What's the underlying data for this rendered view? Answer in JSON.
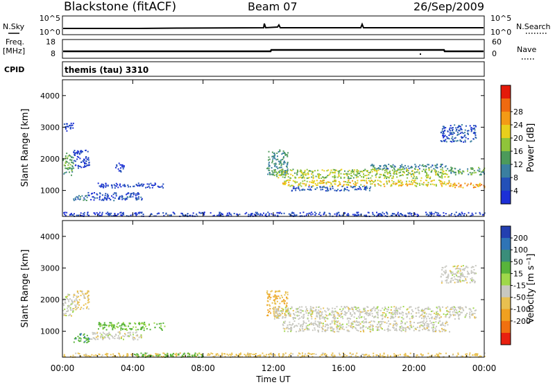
{
  "header": {
    "station": "Blackstone (fitACF)",
    "beam": "Beam 07",
    "date": "26/Sep/2009"
  },
  "strips": {
    "nsky_label": "N.Sky",
    "nsky_ticks": [
      "10^5",
      "10^0"
    ],
    "nsearch_label": "N.Search",
    "nsearch_ticks": [
      "10^5",
      "10^0"
    ],
    "freq_label": "Freq.",
    "freq_unit": "[MHz]",
    "freq_ticks": [
      "18",
      "8"
    ],
    "nave_label": "Nave",
    "nave_ticks": [
      "60",
      "0"
    ],
    "cpid_label": "CPID",
    "cpid_value": "themis (tau) 3310"
  },
  "colors": {
    "power_scale": [
      "#1c2fd6",
      "#2350b8",
      "#3a7fa0",
      "#4c9a5a",
      "#8fc43a",
      "#e8cf1c",
      "#f39a16",
      "#ef6a10",
      "#e41a0a"
    ],
    "velocity_scale": [
      "#233fb0",
      "#2f74b6",
      "#3a8d7a",
      "#58b43a",
      "#9fd84a",
      "#c8c8c0",
      "#e8c050",
      "#f0a020",
      "#f07010",
      "#e82010"
    ]
  },
  "chart_data": [
    {
      "type": "heatmap",
      "panel": "power",
      "ylabel": "Slant Range [km]",
      "ylim": [
        180,
        4500
      ],
      "yticks": [
        "1000",
        "2000",
        "3000",
        "4000"
      ],
      "colorbar_label": "Power [dB]",
      "colorbar_ticks": [
        "4",
        "8",
        "12",
        "16",
        "20",
        "24",
        "28"
      ],
      "x_hours": [
        0,
        24
      ],
      "regions": [
        {
          "t": [
            0.0,
            0.6
          ],
          "r": [
            1500,
            2200
          ],
          "v": 14
        },
        {
          "t": [
            0.0,
            0.6
          ],
          "r": [
            2900,
            3150
          ],
          "v": 4
        },
        {
          "t": [
            0.6,
            1.5
          ],
          "r": [
            1700,
            2300
          ],
          "v": 4
        },
        {
          "t": [
            0.6,
            1.4
          ],
          "r": [
            700,
            900
          ],
          "v": 10
        },
        {
          "t": [
            1.4,
            4.5
          ],
          "r": [
            700,
            950
          ],
          "v": 5
        },
        {
          "t": [
            2.0,
            5.8
          ],
          "r": [
            1100,
            1250
          ],
          "v": 4
        },
        {
          "t": [
            3.0,
            3.5
          ],
          "r": [
            1600,
            1900
          ],
          "v": 4
        },
        {
          "t": [
            0.0,
            24.0
          ],
          "r": [
            200,
            330
          ],
          "v": 4
        },
        {
          "t": [
            11.6,
            12.8
          ],
          "r": [
            1500,
            2300
          ],
          "v": 12
        },
        {
          "t": [
            12.0,
            22.0
          ],
          "r": [
            1400,
            1700
          ],
          "v": 18
        },
        {
          "t": [
            12.5,
            22.0
          ],
          "r": [
            1150,
            1350
          ],
          "v": 22
        },
        {
          "t": [
            13.0,
            17.5
          ],
          "r": [
            1000,
            1150
          ],
          "v": 6
        },
        {
          "t": [
            17.5,
            22.0
          ],
          "r": [
            1700,
            1850
          ],
          "v": 10
        },
        {
          "t": [
            22.0,
            24.0
          ],
          "r": [
            1100,
            1250
          ],
          "v": 26
        },
        {
          "t": [
            22.0,
            24.0
          ],
          "r": [
            1500,
            1750
          ],
          "v": 14
        },
        {
          "t": [
            21.5,
            23.5
          ],
          "r": [
            2550,
            3100
          ],
          "v": 6
        }
      ]
    },
    {
      "type": "heatmap",
      "panel": "velocity",
      "ylabel": "Slant Range [km]",
      "ylim": [
        180,
        4500
      ],
      "yticks": [
        "1000",
        "2000",
        "3000",
        "4000"
      ],
      "colorbar_label": "Velocity [m s⁻¹]",
      "colorbar_ticks": [
        "200",
        "100",
        "50",
        "15",
        "-15",
        "-50",
        "-100",
        "-200"
      ],
      "x_hours": [
        0,
        24
      ],
      "xticks": [
        "00:00",
        "04:00",
        "08:00",
        "12:00",
        "16:00",
        "20:00",
        "00:00"
      ],
      "xlabel": "Time UT",
      "regions": [
        {
          "t": [
            0.0,
            0.6
          ],
          "r": [
            1500,
            2200
          ],
          "v": 0
        },
        {
          "t": [
            0.6,
            1.5
          ],
          "r": [
            1700,
            2300
          ],
          "v": -20
        },
        {
          "t": [
            0.6,
            1.5
          ],
          "r": [
            650,
            950
          ],
          "v": 60
        },
        {
          "t": [
            1.5,
            4.5
          ],
          "r": [
            750,
            1000
          ],
          "v": 0
        },
        {
          "t": [
            2.0,
            5.8
          ],
          "r": [
            1050,
            1300
          ],
          "v": 40
        },
        {
          "t": [
            0.0,
            24.0
          ],
          "r": [
            200,
            330
          ],
          "v": -30
        },
        {
          "t": [
            4.0,
            8.0
          ],
          "r": [
            200,
            330
          ],
          "v": 50
        },
        {
          "t": [
            11.6,
            12.8
          ],
          "r": [
            1500,
            2300
          ],
          "v": -40
        },
        {
          "t": [
            12.0,
            23.5
          ],
          "r": [
            1400,
            1800
          ],
          "v": 0
        },
        {
          "t": [
            12.5,
            22.0
          ],
          "r": [
            1000,
            1350
          ],
          "v": 0
        },
        {
          "t": [
            21.5,
            23.5
          ],
          "r": [
            2550,
            3100
          ],
          "v": 0
        }
      ]
    }
  ]
}
